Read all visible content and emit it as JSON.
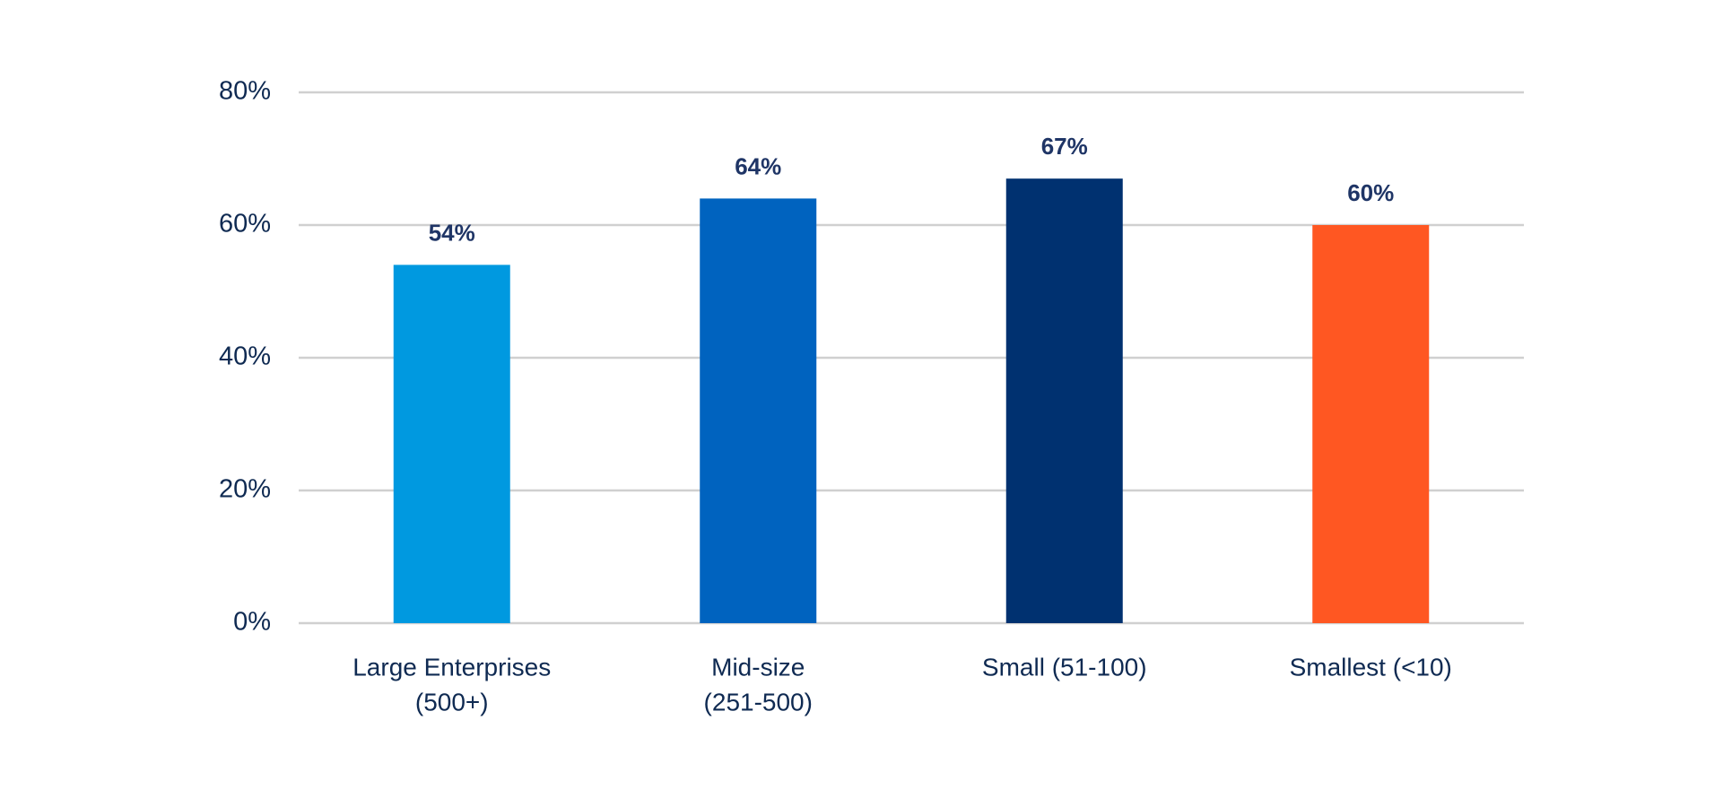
{
  "chart_data": {
    "type": "bar",
    "categories": [
      [
        "Large Enterprises",
        "(500+)"
      ],
      [
        "Mid-size",
        "(251-500)"
      ],
      [
        "Small (51-100)"
      ],
      [
        "Smallest (<10)"
      ]
    ],
    "values": [
      54,
      64,
      67,
      60
    ],
    "value_labels": [
      "54%",
      "64%",
      "67%",
      "60%"
    ],
    "colors": [
      "#0099e0",
      "#0063bf",
      "#003170",
      "#ff5722"
    ],
    "ylim": [
      0,
      80
    ],
    "yticks": [
      {
        "value": 0,
        "label": "0%"
      },
      {
        "value": 20,
        "label": "20%"
      },
      {
        "value": 40,
        "label": "40%"
      },
      {
        "value": 60,
        "label": "60%"
      },
      {
        "value": 80,
        "label": "80%"
      }
    ],
    "grid": true
  }
}
